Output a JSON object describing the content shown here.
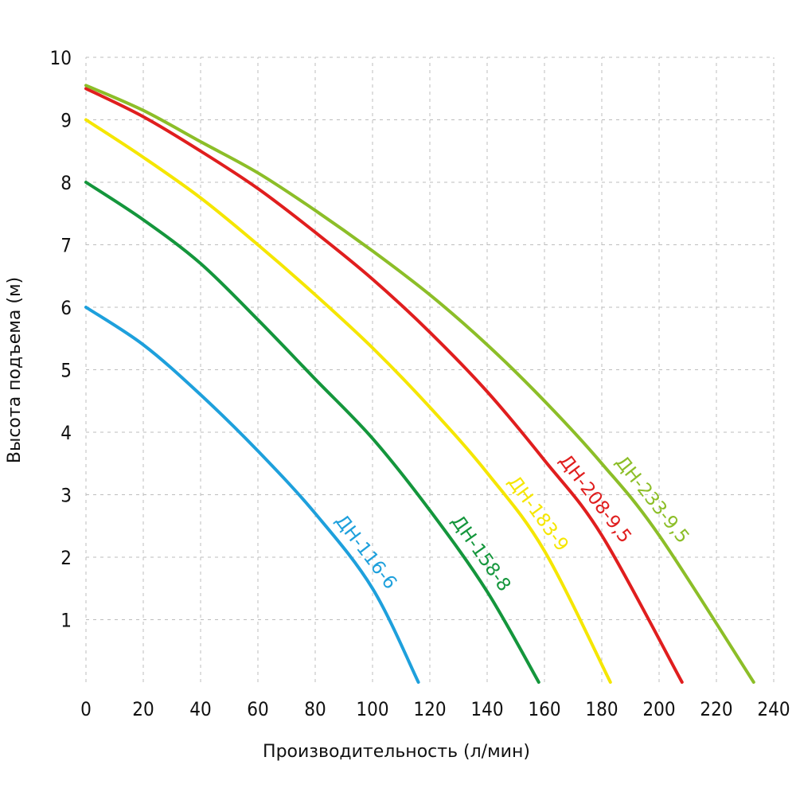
{
  "chart_data": {
    "type": "line",
    "title": "",
    "xlabel": "Производительность (л/мин)",
    "ylabel": "Высота подъема (м)",
    "xlim": [
      0,
      240
    ],
    "ylim": [
      0,
      10
    ],
    "x_ticks": [
      "0",
      "20",
      "40",
      "60",
      "80",
      "100",
      "120",
      "140",
      "160",
      "180",
      "200",
      "220",
      "240"
    ],
    "y_ticks": [
      "1",
      "2",
      "3",
      "4",
      "5",
      "6",
      "7",
      "8",
      "9",
      "10"
    ],
    "grid": true,
    "series": [
      {
        "name": "ДН-116-6",
        "color": "#1ea0dc",
        "points": [
          [
            0,
            6.0
          ],
          [
            20,
            5.4
          ],
          [
            40,
            4.6
          ],
          [
            60,
            3.7
          ],
          [
            80,
            2.7
          ],
          [
            100,
            1.5
          ],
          [
            116,
            0
          ]
        ]
      },
      {
        "name": "ДН-158-8",
        "color": "#14963c",
        "points": [
          [
            0,
            8.0
          ],
          [
            20,
            7.4
          ],
          [
            40,
            6.7
          ],
          [
            60,
            5.8
          ],
          [
            80,
            4.85
          ],
          [
            100,
            3.9
          ],
          [
            120,
            2.75
          ],
          [
            140,
            1.45
          ],
          [
            158,
            0
          ]
        ]
      },
      {
        "name": "ДН-183-9",
        "color": "#f5e600",
        "points": [
          [
            0,
            9.0
          ],
          [
            20,
            8.4
          ],
          [
            40,
            7.75
          ],
          [
            60,
            7.0
          ],
          [
            80,
            6.2
          ],
          [
            100,
            5.35
          ],
          [
            120,
            4.4
          ],
          [
            140,
            3.35
          ],
          [
            160,
            2.1
          ],
          [
            183,
            0
          ]
        ]
      },
      {
        "name": "ДН-208-9,5",
        "color": "#e01e1e",
        "points": [
          [
            0,
            9.5
          ],
          [
            20,
            9.05
          ],
          [
            40,
            8.5
          ],
          [
            60,
            7.9
          ],
          [
            80,
            7.2
          ],
          [
            100,
            6.45
          ],
          [
            120,
            5.6
          ],
          [
            140,
            4.65
          ],
          [
            160,
            3.55
          ],
          [
            180,
            2.35
          ],
          [
            208,
            0
          ]
        ]
      },
      {
        "name": "ДН-233-9,5",
        "color": "#8cbe28",
        "points": [
          [
            0,
            9.55
          ],
          [
            20,
            9.15
          ],
          [
            40,
            8.65
          ],
          [
            60,
            8.15
          ],
          [
            80,
            7.55
          ],
          [
            100,
            6.9
          ],
          [
            120,
            6.2
          ],
          [
            140,
            5.4
          ],
          [
            160,
            4.5
          ],
          [
            180,
            3.5
          ],
          [
            200,
            2.35
          ],
          [
            233,
            0
          ]
        ]
      }
    ]
  }
}
